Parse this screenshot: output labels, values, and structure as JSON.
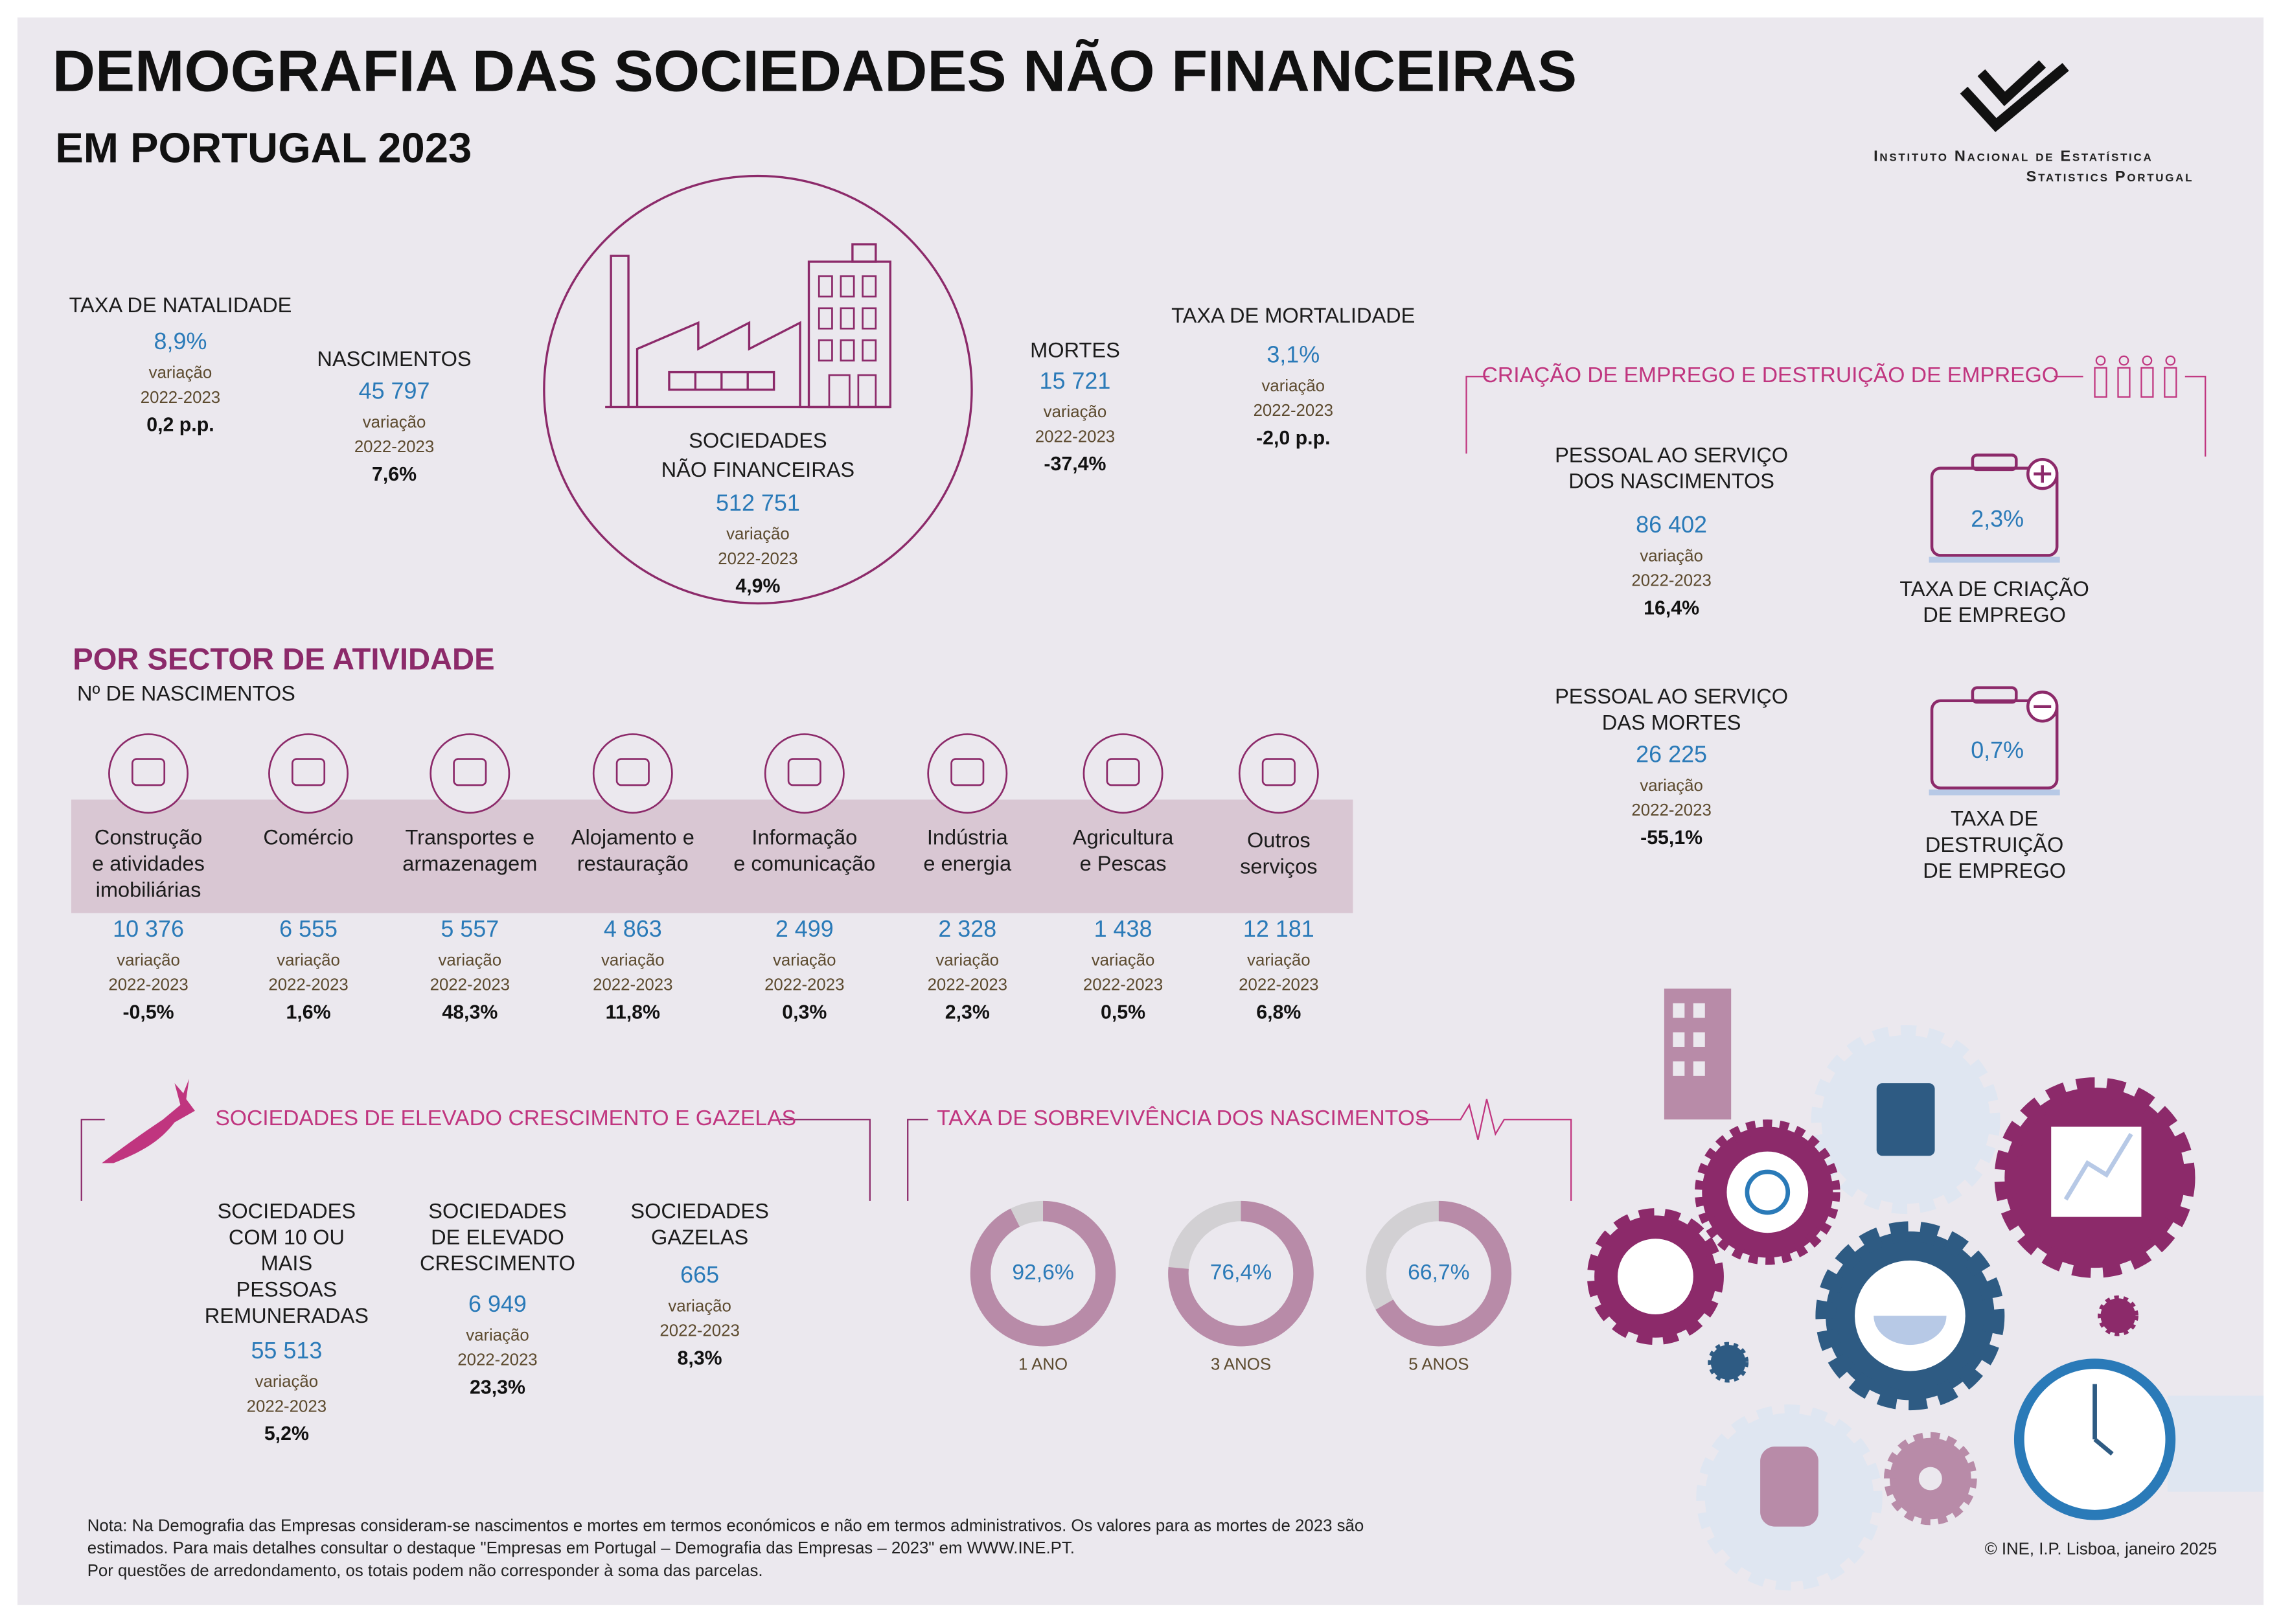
{
  "header": {
    "title": "DEMOGRAFIA DAS SOCIEDADES NÃO FINANCEIRAS",
    "subtitle": "EM PORTUGAL 2023",
    "logo_line1": "Instituto Nacional de Estatística",
    "logo_line2": "Statistics Portugal"
  },
  "stats": [
    {
      "label": [
        "TAXA DE NATALIDADE"
      ],
      "value": "8,9%",
      "note": "variação",
      "period": "2022-2023",
      "change": "0,2 p.p."
    },
    {
      "label": [
        "NASCIMENTOS"
      ],
      "value": "45 797",
      "note": "variação",
      "period": "2022-2023",
      "change": "7,6%"
    },
    {
      "label": [
        "SOCIEDADES",
        "NÃO FINANCEIRAS"
      ],
      "value": "512 751",
      "note": "variação",
      "period": "2022-2023",
      "change": "4,9%"
    },
    {
      "label": [
        "MORTES"
      ],
      "value": "15 721",
      "note": "variação",
      "period": "2022-2023",
      "change": "-37,4%"
    },
    {
      "label": [
        "TAXA DE MORTALIDADE"
      ],
      "value": "3,1%",
      "note": "variação",
      "period": "2022-2023",
      "change": "-2,0 p.p."
    }
  ],
  "employment": {
    "title": "CRIAÇÃO DE EMPREGO E DESTRUIÇÃO DE EMPREGO",
    "blocks": [
      {
        "label": [
          "PESSOAL AO SERVIÇO",
          "DOS NASCIMENTOS"
        ],
        "value": "86 402",
        "note": "variação",
        "period": "2022-2023",
        "change": "16,4%"
      },
      {
        "label": [
          "PESSOAL AO SERVIÇO",
          "DAS MORTES"
        ],
        "value": "26 225",
        "note": "variação",
        "period": "2022-2023",
        "change": "-55,1%"
      }
    ],
    "rates": [
      {
        "value": "2,3%",
        "label": [
          "TAXA DE CRIAÇÃO",
          "DE EMPREGO"
        ]
      },
      {
        "value": "0,7%",
        "label": [
          "TAXA DE",
          "DESTRUIÇÃO",
          "DE EMPREGO"
        ]
      }
    ]
  },
  "sectors": {
    "title": "POR SECTOR DE ATIVIDADE",
    "subtitle": "Nº DE NASCIMENTOS",
    "items": [
      {
        "label": [
          "Construção",
          "e atividades",
          "imobiliárias"
        ],
        "value": "10 376",
        "note": "variação",
        "period": "2022-2023",
        "change": "-0,5%"
      },
      {
        "label": [
          "Comércio"
        ],
        "value": "6 555",
        "note": "variação",
        "period": "2022-2023",
        "change": "1,6%"
      },
      {
        "label": [
          "Transportes e",
          "armazenagem"
        ],
        "value": "5 557",
        "note": "variação",
        "period": "2022-2023",
        "change": "48,3%"
      },
      {
        "label": [
          "Alojamento e",
          "restauração"
        ],
        "value": "4 863",
        "note": "variação",
        "period": "2022-2023",
        "change": "11,8%"
      },
      {
        "label": [
          "Informação",
          "e comunicação"
        ],
        "value": "2 499",
        "note": "variação",
        "period": "2022-2023",
        "change": "0,3%"
      },
      {
        "label": [
          "Indústria",
          "e energia"
        ],
        "value": "2 328",
        "note": "variação",
        "period": "2022-2023",
        "change": "2,3%"
      },
      {
        "label": [
          "Agricultura",
          "e Pescas"
        ],
        "value": "1 438",
        "note": "variação",
        "period": "2022-2023",
        "change": "0,5%"
      },
      {
        "label": [
          "Outros",
          "serviços"
        ],
        "value": "12 181",
        "note": "variação",
        "period": "2022-2023",
        "change": "6,8%"
      }
    ]
  },
  "gazelles": {
    "title": "SOCIEDADES DE ELEVADO CRESCIMENTO E GAZELAS",
    "blocks": [
      {
        "label": [
          "SOCIEDADES",
          "COM 10 OU",
          "MAIS",
          "PESSOAS",
          "REMUNERADAS"
        ],
        "value": "55 513",
        "note": "variação",
        "period": "2022-2023",
        "change": "5,2%"
      },
      {
        "label": [
          "SOCIEDADES",
          "DE ELEVADO",
          "CRESCIMENTO"
        ],
        "value": "6 949",
        "note": "variação",
        "period": "2022-2023",
        "change": "23,3%"
      },
      {
        "label": [
          "SOCIEDADES",
          "GAZELAS"
        ],
        "value": "665",
        "note": "variação",
        "period": "2022-2023",
        "change": "8,3%"
      }
    ]
  },
  "survival": {
    "title": "TAXA DE SOBREVIVÊNCIA DOS NASCIMENTOS",
    "items": [
      {
        "value": 92.6,
        "label": "92,6%",
        "period": "1 ANO"
      },
      {
        "value": 76.4,
        "label": "76,4%",
        "period": "3 ANOS"
      },
      {
        "value": 66.7,
        "label": "66,7%",
        "period": "5 ANOS"
      }
    ]
  },
  "footer": {
    "note": [
      "Nota: Na Demografia das Empresas consideram-se nascimentos e mortes em termos económicos e não em termos administrativos. Os valores para as mortes de 2023 são",
      "estimados. Para mais detalhes consultar o destaque \"Empresas em Portugal – Demografia das Empresas – 2023\" em WWW.INE.PT.",
      "Por questões de arredondamento, os totais podem não corresponder à soma das parcelas."
    ],
    "copyright": "© INE, I.P. Lisboa, janeiro 2025"
  }
}
